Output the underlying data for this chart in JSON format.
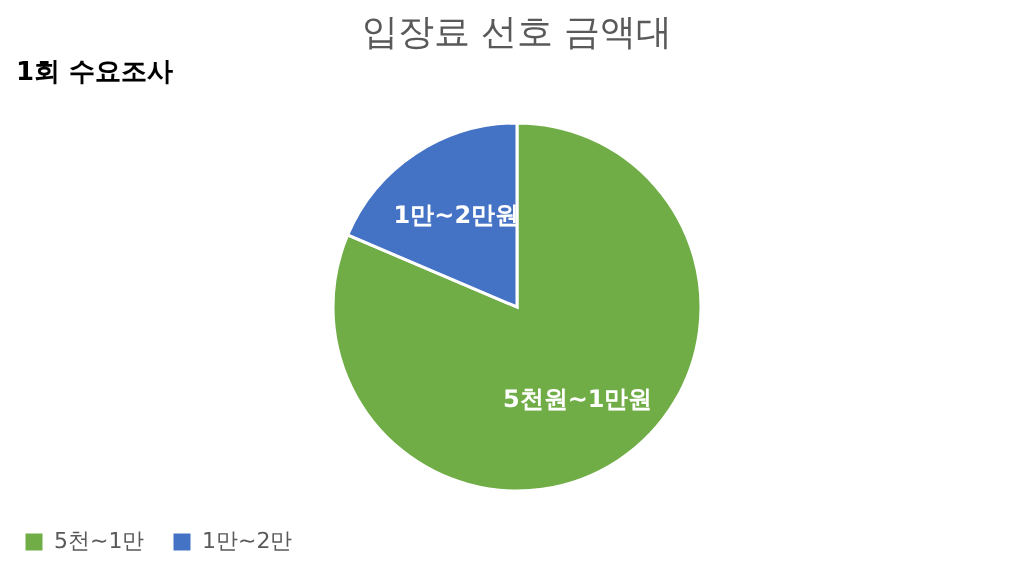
{
  "chart_data": {
    "type": "pie",
    "title": "입장료 선호 금액대",
    "categories": [
      "5천~1만",
      "1만~2만"
    ],
    "values": [
      81.4,
      18.6
    ],
    "colors": [
      "#70ad47",
      "#4472c4"
    ],
    "legend": "bottom",
    "annotations": [
      "1회 수요조사",
      {
        "text": "5천원~1만원",
        "x": "5천~1만"
      },
      {
        "text": "1만~2만원",
        "x": "1만~2만"
      }
    ]
  }
}
